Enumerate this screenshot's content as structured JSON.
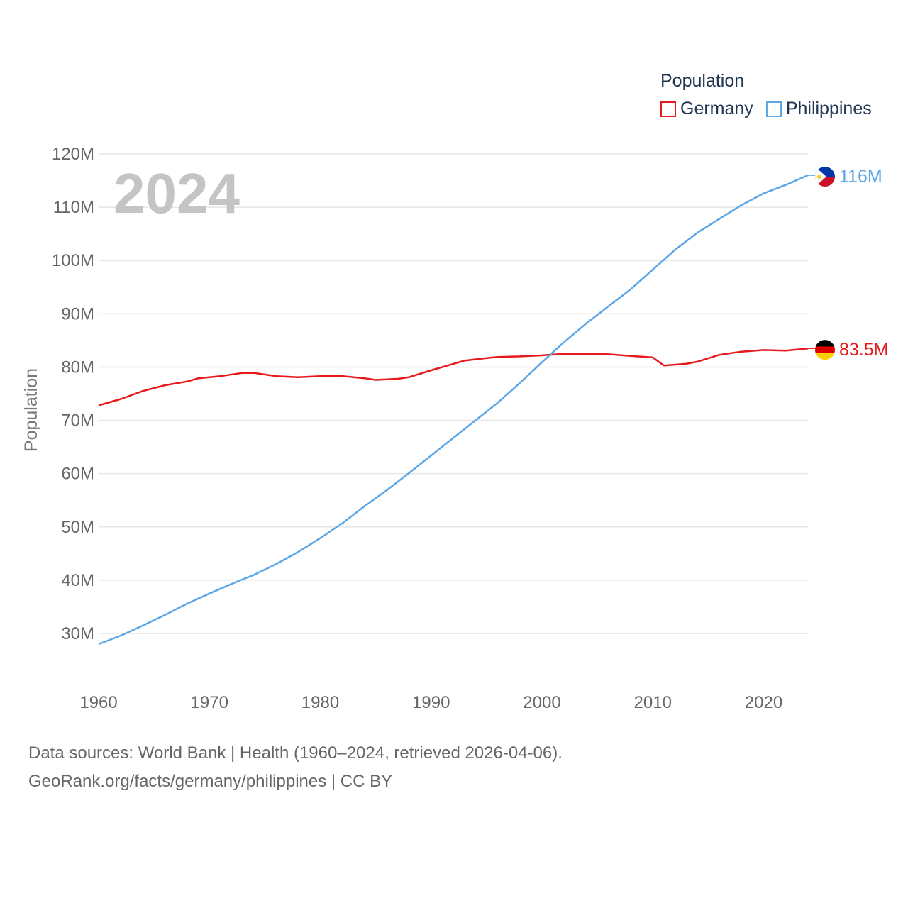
{
  "chart_data": {
    "type": "line",
    "year_label": "2024",
    "ylabel": "Population",
    "xlabel": "",
    "xlim": [
      1960,
      2024
    ],
    "ylim": [
      25000000,
      120000000
    ],
    "y_ticks": [
      {
        "value": 30000000,
        "label": "30M"
      },
      {
        "value": 40000000,
        "label": "40M"
      },
      {
        "value": 50000000,
        "label": "50M"
      },
      {
        "value": 60000000,
        "label": "60M"
      },
      {
        "value": 70000000,
        "label": "70M"
      },
      {
        "value": 80000000,
        "label": "80M"
      },
      {
        "value": 90000000,
        "label": "90M"
      },
      {
        "value": 100000000,
        "label": "100M"
      },
      {
        "value": 110000000,
        "label": "110M"
      },
      {
        "value": 120000000,
        "label": "120M"
      }
    ],
    "x_ticks": [
      {
        "value": 1960,
        "label": "1960"
      },
      {
        "value": 1970,
        "label": "1970"
      },
      {
        "value": 1980,
        "label": "1980"
      },
      {
        "value": 1990,
        "label": "1990"
      },
      {
        "value": 2000,
        "label": "2000"
      },
      {
        "value": 2010,
        "label": "2010"
      },
      {
        "value": 2020,
        "label": "2020"
      }
    ],
    "legend_title": "Population",
    "series": [
      {
        "name": "Germany",
        "color": "#e8191b",
        "end_label": "83.5M",
        "flag": "germany-flag-icon",
        "points": [
          [
            1960,
            72.8
          ],
          [
            1962,
            74.0
          ],
          [
            1964,
            75.5
          ],
          [
            1966,
            76.6
          ],
          [
            1968,
            77.3
          ],
          [
            1969,
            77.9
          ],
          [
            1971,
            78.3
          ],
          [
            1973,
            78.9
          ],
          [
            1974,
            78.9
          ],
          [
            1976,
            78.3
          ],
          [
            1978,
            78.1
          ],
          [
            1980,
            78.3
          ],
          [
            1982,
            78.3
          ],
          [
            1984,
            77.9
          ],
          [
            1985,
            77.6
          ],
          [
            1987,
            77.8
          ],
          [
            1988,
            78.1
          ],
          [
            1990,
            79.4
          ],
          [
            1992,
            80.6
          ],
          [
            1993,
            81.2
          ],
          [
            1995,
            81.7
          ],
          [
            1996,
            81.9
          ],
          [
            1998,
            82.0
          ],
          [
            2000,
            82.2
          ],
          [
            2002,
            82.5
          ],
          [
            2004,
            82.5
          ],
          [
            2006,
            82.4
          ],
          [
            2008,
            82.1
          ],
          [
            2010,
            81.8
          ],
          [
            2011,
            80.3
          ],
          [
            2013,
            80.6
          ],
          [
            2014,
            81.0
          ],
          [
            2016,
            82.3
          ],
          [
            2018,
            82.9
          ],
          [
            2020,
            83.2
          ],
          [
            2022,
            83.1
          ],
          [
            2024,
            83.5
          ]
        ]
      },
      {
        "name": "Philippines",
        "color": "#5ba6e6",
        "end_label": "116M",
        "flag": "philippines-flag-icon",
        "points": [
          [
            1960,
            28.0
          ],
          [
            1962,
            29.6
          ],
          [
            1964,
            31.5
          ],
          [
            1966,
            33.5
          ],
          [
            1968,
            35.6
          ],
          [
            1970,
            37.5
          ],
          [
            1972,
            39.3
          ],
          [
            1974,
            41.0
          ],
          [
            1976,
            43.0
          ],
          [
            1978,
            45.3
          ],
          [
            1980,
            47.9
          ],
          [
            1982,
            50.7
          ],
          [
            1984,
            53.9
          ],
          [
            1986,
            56.9
          ],
          [
            1988,
            60.1
          ],
          [
            1990,
            63.4
          ],
          [
            1992,
            66.7
          ],
          [
            1994,
            70.0
          ],
          [
            1996,
            73.3
          ],
          [
            1998,
            77.0
          ],
          [
            2000,
            80.9
          ],
          [
            2002,
            84.7
          ],
          [
            2004,
            88.2
          ],
          [
            2006,
            91.4
          ],
          [
            2008,
            94.6
          ],
          [
            2010,
            98.3
          ],
          [
            2012,
            102.0
          ],
          [
            2014,
            105.2
          ],
          [
            2016,
            107.8
          ],
          [
            2018,
            110.4
          ],
          [
            2020,
            112.6
          ],
          [
            2022,
            114.2
          ],
          [
            2024,
            116.0
          ]
        ]
      }
    ]
  },
  "footer": {
    "line1": "Data sources: World Bank | Health (1960–2024, retrieved 2026-04-06).",
    "line2": "GeoRank.org/facts/germany/philippines | CC BY"
  }
}
